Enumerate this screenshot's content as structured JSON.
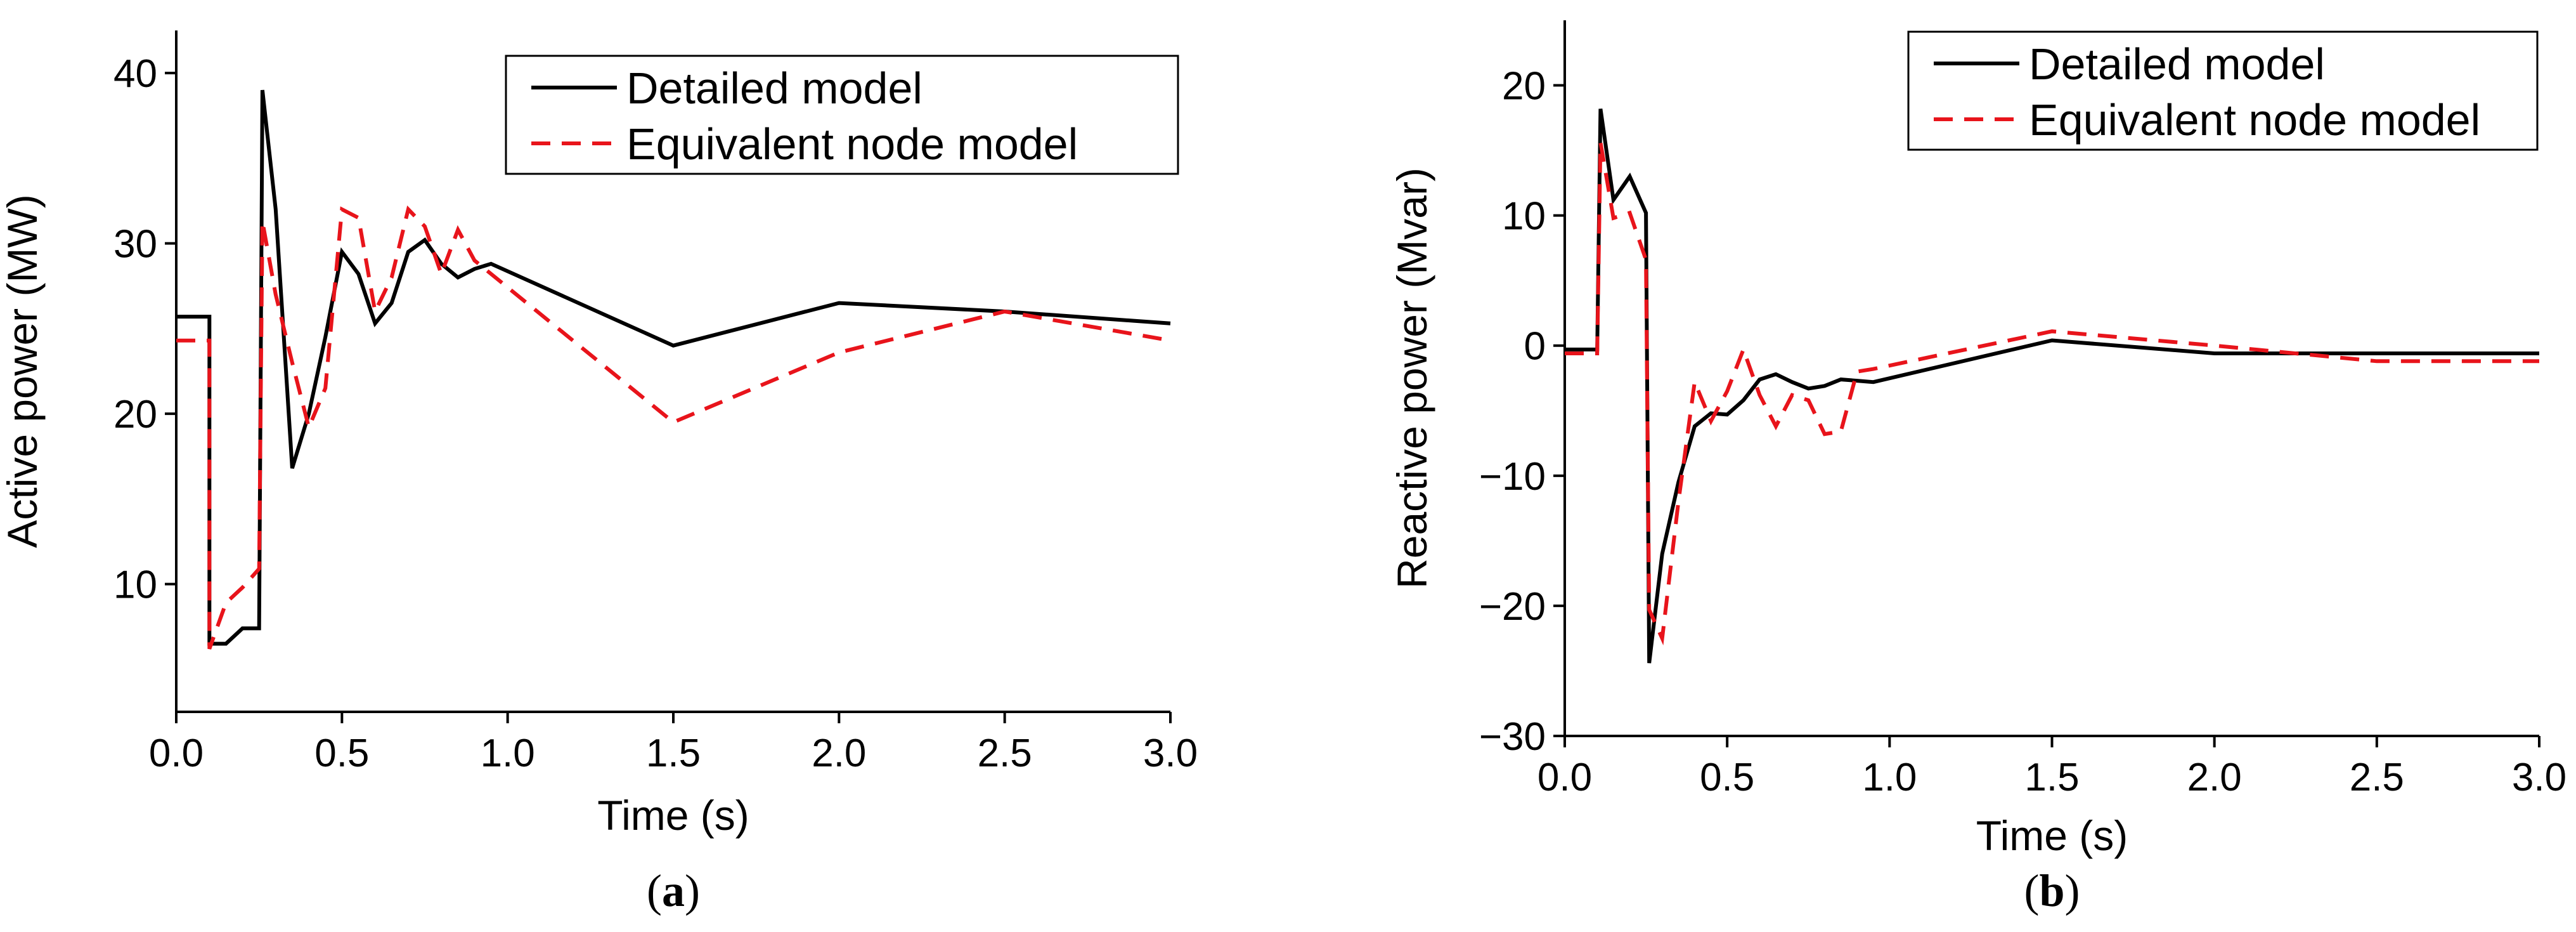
{
  "chart_data": [
    {
      "type": "line",
      "panel_label": "(a)",
      "panel_letter": "a",
      "xlabel": "Time (s)",
      "ylabel": "Active power (MW)",
      "xlim": [
        0,
        3
      ],
      "ylim": [
        2.5,
        42.5
      ],
      "xticks": [
        0,
        0.5,
        1,
        1.5,
        2,
        2.5,
        3
      ],
      "xtick_labels": [
        "0.0",
        "0.5",
        "1.0",
        "1.5",
        "2.0",
        "2.5",
        "3.0"
      ],
      "yticks": [
        10,
        20,
        30,
        40
      ],
      "ytick_labels": [
        "10",
        "20",
        "30",
        "40"
      ],
      "legend_position": "top-right",
      "series": [
        {
          "name": "Detailed model",
          "color": "#000000",
          "dash": "solid",
          "x": [
            0,
            0.1,
            0.1,
            0.15,
            0.2,
            0.25,
            0.26,
            0.3,
            0.35,
            0.4,
            0.45,
            0.5,
            0.55,
            0.6,
            0.65,
            0.7,
            0.75,
            0.8,
            0.85,
            0.9,
            0.95,
            1.5,
            2.0,
            2.5,
            3.0
          ],
          "y": [
            25.7,
            25.7,
            6.5,
            6.5,
            7.4,
            7.4,
            39.0,
            32.0,
            16.8,
            20.0,
            24.5,
            29.5,
            28.2,
            25.3,
            26.5,
            29.5,
            30.2,
            28.8,
            28.0,
            28.5,
            28.8,
            24.0,
            26.5,
            26.0,
            25.3
          ]
        },
        {
          "name": "Equivalent node model",
          "color": "#e8141b",
          "dash": "dashed",
          "x": [
            0,
            0.1,
            0.1,
            0.15,
            0.2,
            0.25,
            0.26,
            0.3,
            0.35,
            0.4,
            0.45,
            0.5,
            0.55,
            0.6,
            0.65,
            0.7,
            0.75,
            0.8,
            0.85,
            0.9,
            1.5,
            2.0,
            2.5,
            3.0
          ],
          "y": [
            24.3,
            24.3,
            6.2,
            8.9,
            9.8,
            10.9,
            31.3,
            27.0,
            23.0,
            19.2,
            21.5,
            32.0,
            31.5,
            26.0,
            28.0,
            32.0,
            31.0,
            28.2,
            30.8,
            29.0,
            19.5,
            23.6,
            26.0,
            24.3
          ]
        }
      ]
    },
    {
      "type": "line",
      "panel_label": "(b)",
      "panel_letter": "b",
      "xlabel": "Time (s)",
      "ylabel": "Reactive power (Mvar)",
      "xlim": [
        0,
        3
      ],
      "ylim": [
        -30,
        25
      ],
      "xticks": [
        0,
        0.5,
        1,
        1.5,
        2,
        2.5,
        3
      ],
      "xtick_labels": [
        "0.0",
        "0.5",
        "1.0",
        "1.5",
        "2.0",
        "2.5",
        "3.0"
      ],
      "yticks": [
        -30,
        -20,
        -10,
        0,
        10,
        20
      ],
      "ytick_labels": [
        "−30",
        "−20",
        "−10",
        "0",
        "10",
        "20"
      ],
      "legend_position": "top-right",
      "series": [
        {
          "name": "Detailed model",
          "color": "#000000",
          "dash": "solid",
          "x": [
            0,
            0.1,
            0.11,
            0.15,
            0.2,
            0.25,
            0.26,
            0.3,
            0.35,
            0.4,
            0.45,
            0.5,
            0.55,
            0.6,
            0.65,
            0.7,
            0.75,
            0.8,
            0.85,
            0.9,
            0.95,
            1.5,
            2.0,
            2.5,
            3.0
          ],
          "y": [
            -0.3,
            -0.3,
            18.2,
            11.2,
            13.0,
            10.2,
            -24.4,
            -16.0,
            -10.5,
            -6.2,
            -5.2,
            -5.3,
            -4.2,
            -2.6,
            -2.2,
            -2.8,
            -3.3,
            -3.1,
            -2.6,
            -2.7,
            -2.8,
            0.4,
            -0.6,
            -0.6,
            -0.6
          ]
        },
        {
          "name": "Equivalent node model",
          "color": "#e8141b",
          "dash": "dashed",
          "x": [
            0,
            0.1,
            0.11,
            0.15,
            0.2,
            0.25,
            0.26,
            0.3,
            0.35,
            0.4,
            0.45,
            0.5,
            0.55,
            0.6,
            0.65,
            0.7,
            0.75,
            0.8,
            0.85,
            0.9,
            0.95,
            1.5,
            2.0,
            2.5,
            3.0
          ],
          "y": [
            -0.6,
            -0.6,
            15.6,
            9.8,
            10.2,
            6.6,
            -20.3,
            -22.5,
            -12.0,
            -2.8,
            -5.8,
            -3.5,
            -0.3,
            -3.8,
            -6.2,
            -3.8,
            -4.2,
            -6.8,
            -6.6,
            -2.0,
            -1.8,
            1.1,
            0.0,
            -1.2,
            -1.2
          ]
        }
      ]
    }
  ]
}
